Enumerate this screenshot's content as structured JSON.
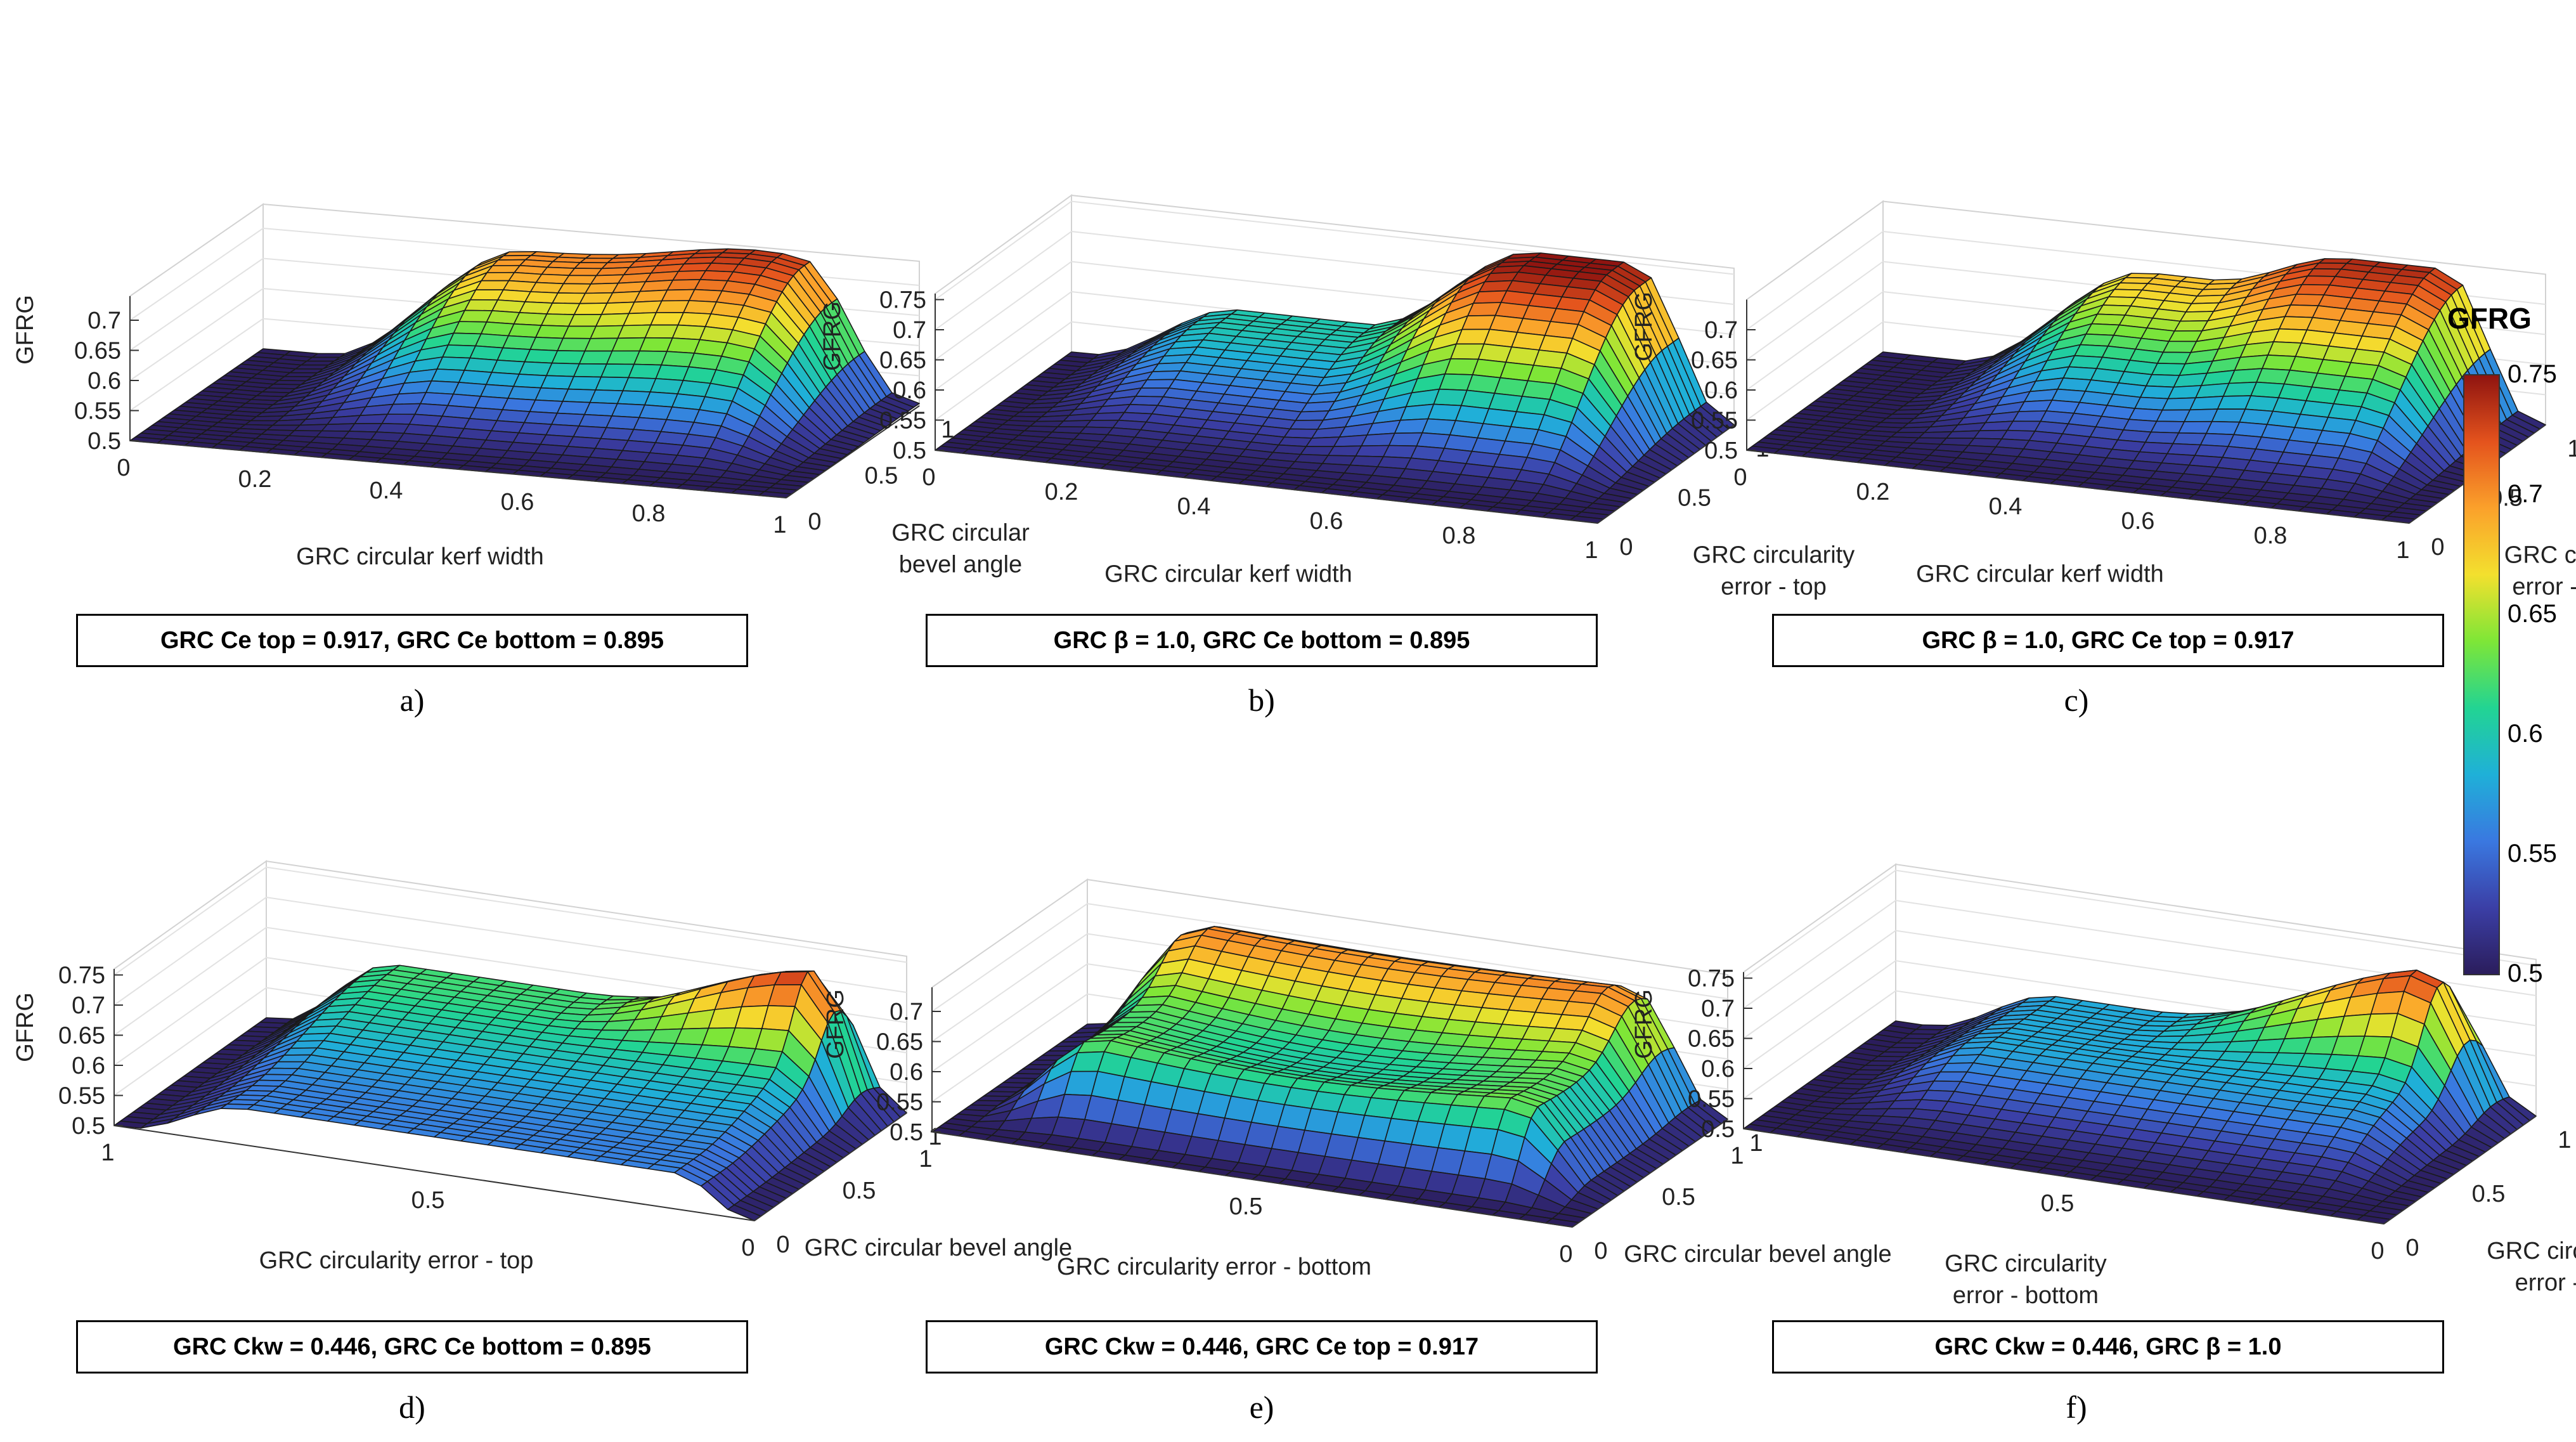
{
  "colorbar": {
    "title": "GFRG",
    "ticks": [
      "0.75",
      "0.7",
      "0.65",
      "0.6",
      "0.55",
      "0.5"
    ],
    "range": [
      0.5,
      0.75
    ],
    "colormap": [
      "#2b1d5c",
      "#3b3fa6",
      "#3a78e0",
      "#1fb0d8",
      "#22d493",
      "#7ee637",
      "#f3e02e",
      "#fba12b",
      "#e4531d",
      "#8f1410"
    ]
  },
  "chart_data": [
    {
      "id": "a",
      "type": "surface",
      "letter": "a)",
      "caption": "GRC Ce top = 0.917, GRC Ce bottom = 0.895",
      "zlabel": "GFRG",
      "xlabel": "GRC circular kerf width",
      "ylabel": [
        "GRC circular",
        "bevel angle"
      ],
      "xticks": [
        "0",
        "0.2",
        "0.4",
        "0.6",
        "0.8",
        "1"
      ],
      "yticks": [
        "0",
        "0.5",
        "1"
      ],
      "zticks": [
        "0.5",
        "0.55",
        "0.6",
        "0.65",
        "0.7"
      ],
      "zlim": [
        0.5,
        0.74
      ],
      "surface": "kerf_bevel"
    },
    {
      "id": "b",
      "type": "surface",
      "letter": "b)",
      "caption": "GRC β = 1.0, GRC Ce bottom = 0.895",
      "zlabel": "GFRG",
      "xlabel": "GRC circular kerf width",
      "ylabel": [
        "GRC circularity",
        "error - top"
      ],
      "xticks": [
        "0",
        "0.2",
        "0.4",
        "0.6",
        "0.8",
        "1"
      ],
      "yticks": [
        "0",
        "0.5",
        "1"
      ],
      "zticks": [
        "0.5",
        "0.55",
        "0.6",
        "0.65",
        "0.7",
        "0.75"
      ],
      "zlim": [
        0.5,
        0.76
      ],
      "surface": "kerf_top"
    },
    {
      "id": "c",
      "type": "surface",
      "letter": "c)",
      "caption": "GRC β = 1.0, GRC Ce top = 0.917",
      "zlabel": "GFRG",
      "xlabel": "GRC circular kerf width",
      "ylabel": [
        "GRC circularity",
        "error - bottom"
      ],
      "xticks": [
        "0",
        "0.2",
        "0.4",
        "0.6",
        "0.8",
        "1"
      ],
      "yticks": [
        "0",
        "0.5",
        "1"
      ],
      "zticks": [
        "0.5",
        "0.55",
        "0.6",
        "0.65",
        "0.7"
      ],
      "zlim": [
        0.5,
        0.75
      ],
      "surface": "kerf_bottom"
    },
    {
      "id": "d",
      "type": "surface",
      "letter": "d)",
      "caption": "GRC Ckw = 0.446, GRC Ce bottom = 0.895",
      "zlabel": "GFRG",
      "xlabel": "GRC circularity error - top",
      "ylabel": [
        "GRC circular bevel angle"
      ],
      "xticks": [
        "1",
        "0.5",
        "0"
      ],
      "yticks": [
        "0",
        "0.5",
        "1"
      ],
      "zticks": [
        "0.5",
        "0.55",
        "0.6",
        "0.65",
        "0.7",
        "0.75"
      ],
      "zlim": [
        0.5,
        0.76
      ],
      "surface": "top_bevel"
    },
    {
      "id": "e",
      "type": "surface",
      "letter": "e)",
      "caption": "GRC Ckw = 0.446, GRC Ce top = 0.917",
      "zlabel": "GFRG",
      "xlabel": "GRC circularity error - bottom",
      "ylabel": [
        "GRC circular bevel angle"
      ],
      "xticks": [
        "1",
        "0.5",
        "0"
      ],
      "yticks": [
        "0",
        "0.5",
        "1"
      ],
      "zticks": [
        "0.5",
        "0.55",
        "0.6",
        "0.65",
        "0.7"
      ],
      "zlim": [
        0.5,
        0.74
      ],
      "surface": "bottom_bevel"
    },
    {
      "id": "f",
      "type": "surface",
      "letter": "f)",
      "caption": "GRC Ckw = 0.446, GRC β = 1.0",
      "zlabel": "GFRG",
      "xlabel": [
        "GRC circularity",
        "error - bottom"
      ],
      "ylabel": [
        "GRC circularity",
        "error - top"
      ],
      "xticks": [
        "1",
        "0.5",
        "0"
      ],
      "yticks": [
        "0",
        "0.5",
        "1"
      ],
      "zticks": [
        "0.5",
        "0.55",
        "0.6",
        "0.65",
        "0.7",
        "0.75"
      ],
      "zlim": [
        0.5,
        0.76
      ],
      "surface": "bottom_top"
    }
  ]
}
